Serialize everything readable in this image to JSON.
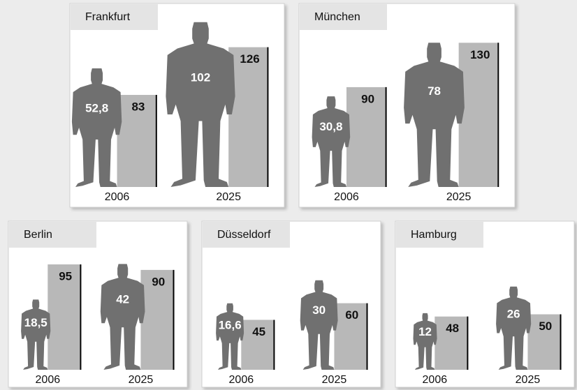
{
  "chart_data": [
    {
      "type": "bar",
      "title": "Frankfurt",
      "categories": [
        "2006",
        "2025"
      ],
      "series": [
        {
          "shape": "person",
          "color": "#707070",
          "values": [
            52.8,
            102
          ],
          "value_labels": [
            "52,8",
            "102"
          ]
        },
        {
          "shape": "bar",
          "color": "#b8b8b8",
          "values": [
            83,
            126
          ]
        }
      ]
    },
    {
      "type": "bar",
      "title": "München",
      "categories": [
        "2006",
        "2025"
      ],
      "series": [
        {
          "shape": "person",
          "color": "#707070",
          "values": [
            30.8,
            78
          ],
          "value_labels": [
            "30,8",
            "78"
          ]
        },
        {
          "shape": "bar",
          "color": "#b8b8b8",
          "values": [
            90,
            130
          ]
        }
      ]
    },
    {
      "type": "bar",
      "title": "Berlin",
      "categories": [
        "2006",
        "2025"
      ],
      "series": [
        {
          "shape": "person",
          "color": "#707070",
          "values": [
            18.5,
            42
          ],
          "value_labels": [
            "18,5",
            "42"
          ]
        },
        {
          "shape": "bar",
          "color": "#b8b8b8",
          "values": [
            95,
            90
          ]
        }
      ]
    },
    {
      "type": "bar",
      "title": "Düsseldorf",
      "categories": [
        "2006",
        "2025"
      ],
      "series": [
        {
          "shape": "person",
          "color": "#707070",
          "values": [
            16.6,
            30
          ],
          "value_labels": [
            "16,6",
            "30"
          ]
        },
        {
          "shape": "bar",
          "color": "#b8b8b8",
          "values": [
            45,
            60
          ]
        }
      ]
    },
    {
      "type": "bar",
      "title": "Hamburg",
      "categories": [
        "2006",
        "2025"
      ],
      "series": [
        {
          "shape": "person",
          "color": "#707070",
          "values": [
            12,
            26
          ],
          "value_labels": [
            "12",
            "26"
          ]
        },
        {
          "shape": "bar",
          "color": "#b8b8b8",
          "values": [
            48,
            50
          ]
        }
      ]
    }
  ]
}
